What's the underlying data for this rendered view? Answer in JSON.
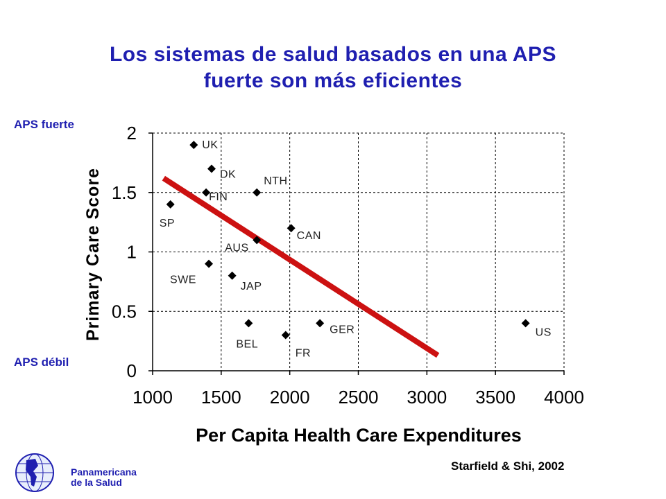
{
  "title_line1": "Los sistemas de salud basados en una APS",
  "title_line2": "fuerte son más eficientes",
  "side_labels": {
    "top": "APS fuerte",
    "bottom": "APS débil"
  },
  "citation": "Starfield & Shi, 2002",
  "logo": {
    "line1": "Panamericana",
    "line2": "de la Salud"
  },
  "colors": {
    "title": "#1f1fb0",
    "trend": "#cc1111",
    "marker": "#000000"
  },
  "chart_data": {
    "type": "scatter",
    "xlabel": "Per Capita Health Care Expenditures",
    "ylabel": "Primary Care Score",
    "xlim": [
      1000,
      4000
    ],
    "ylim": [
      0,
      2
    ],
    "xticks": [
      "1000",
      "1500",
      "2000",
      "2500",
      "3000",
      "3500",
      "4000"
    ],
    "yticks": [
      "0",
      "0.5",
      "1",
      "1.5",
      "2"
    ],
    "grid": true,
    "points": [
      {
        "label": "UK",
        "x": 1300,
        "y": 1.9
      },
      {
        "label": "DK",
        "x": 1430,
        "y": 1.7
      },
      {
        "label": "FIN",
        "x": 1390,
        "y": 1.5
      },
      {
        "label": "SP",
        "x": 1130,
        "y": 1.4
      },
      {
        "label": "NTH",
        "x": 1760,
        "y": 1.5
      },
      {
        "label": "CAN",
        "x": 2010,
        "y": 1.2
      },
      {
        "label": "AUS",
        "x": 1760,
        "y": 1.1
      },
      {
        "label": "SWE",
        "x": 1410,
        "y": 0.9
      },
      {
        "label": "JAP",
        "x": 1580,
        "y": 0.8
      },
      {
        "label": "BEL",
        "x": 1700,
        "y": 0.4
      },
      {
        "label": "FR",
        "x": 1970,
        "y": 0.3
      },
      {
        "label": "GER",
        "x": 2220,
        "y": 0.4
      },
      {
        "label": "US",
        "x": 3720,
        "y": 0.4
      }
    ],
    "trendline": {
      "x": [
        1080,
        3080
      ],
      "y": [
        1.62,
        0.13
      ]
    }
  }
}
